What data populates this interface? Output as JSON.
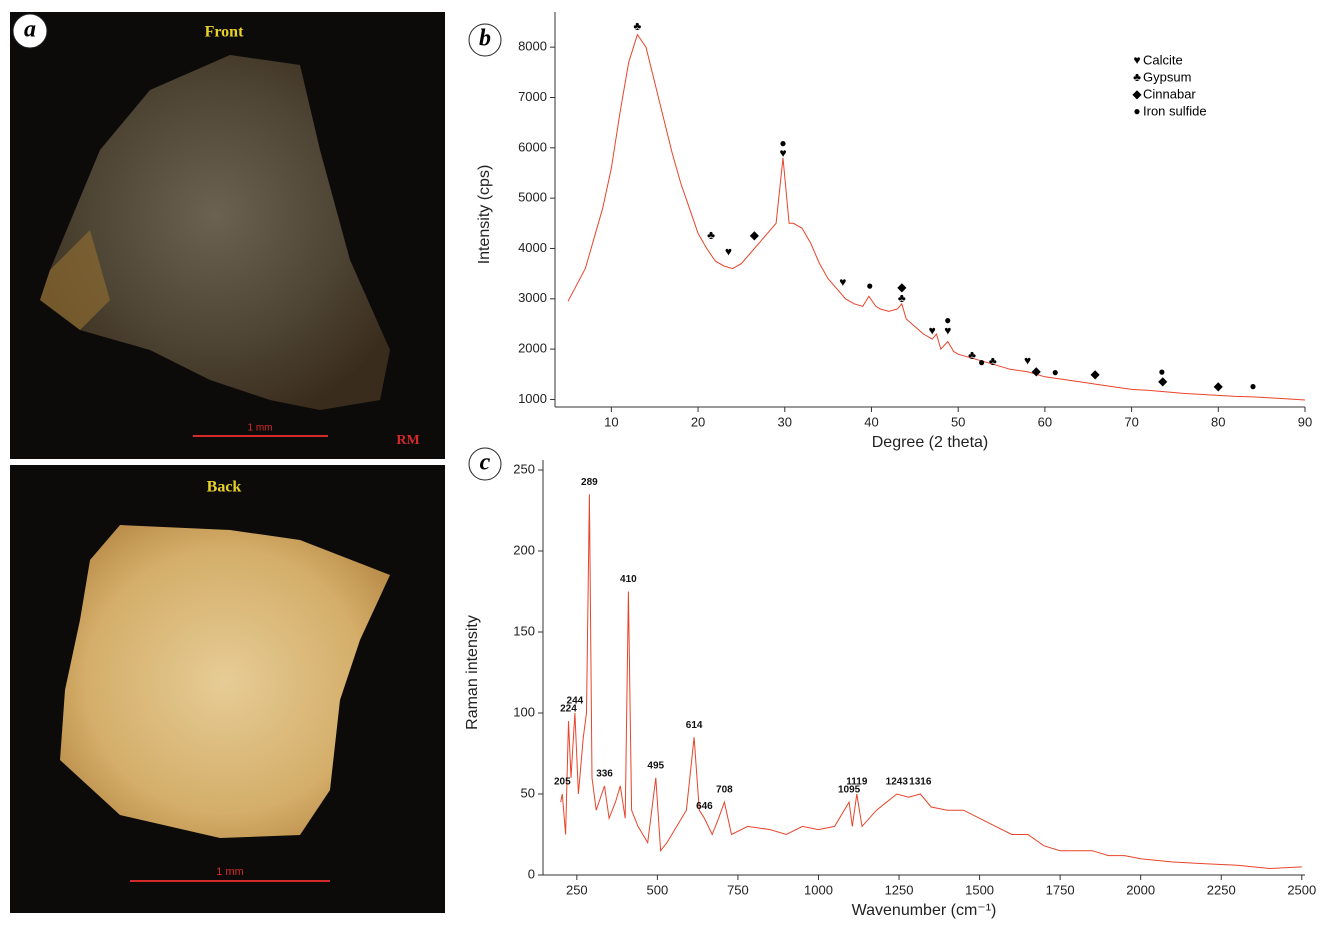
{
  "photos": [
    {
      "label": "a",
      "caption": "Front",
      "scale": "1 mm",
      "tag": "RM"
    },
    {
      "caption": "Back",
      "scale": "1 mm"
    }
  ],
  "chart_data": [
    {
      "type": "line",
      "panel": "b",
      "x_label": "Degree (2 theta)",
      "y_label": "Intensity (cps)",
      "color": "#e8442a",
      "x": [
        5,
        7,
        9,
        10,
        11,
        12,
        13,
        14,
        15,
        16,
        17,
        18,
        19,
        20,
        21,
        22,
        23,
        24,
        25,
        26,
        27,
        28,
        29,
        29.8,
        30.5,
        31,
        32,
        33,
        34,
        35,
        36,
        37,
        38,
        39,
        39.7,
        40.5,
        41,
        42,
        43,
        43.5,
        44,
        45,
        46,
        47,
        47.5,
        48,
        48.8,
        49.5,
        50,
        52,
        54,
        56,
        58,
        60,
        62,
        64,
        66,
        68,
        70,
        72,
        74,
        76,
        78,
        80,
        82,
        84,
        86,
        88,
        90
      ],
      "values": [
        2950,
        3600,
        4800,
        5600,
        6700,
        7700,
        8250,
        8000,
        7300,
        6600,
        5900,
        5300,
        4800,
        4300,
        4000,
        3750,
        3650,
        3600,
        3700,
        3900,
        4100,
        4300,
        4500,
        5800,
        4500,
        4500,
        4400,
        4100,
        3700,
        3400,
        3200,
        3000,
        2900,
        2850,
        3050,
        2850,
        2800,
        2750,
        2800,
        2900,
        2600,
        2450,
        2300,
        2200,
        2300,
        2000,
        2150,
        1950,
        1900,
        1800,
        1700,
        1600,
        1550,
        1450,
        1400,
        1350,
        1300,
        1250,
        1200,
        1180,
        1150,
        1120,
        1100,
        1080,
        1060,
        1050,
        1030,
        1010,
        990
      ],
      "xlim": [
        3.5,
        90
      ],
      "ylim": [
        850,
        8500
      ],
      "xticks": [
        10,
        20,
        30,
        40,
        50,
        60,
        70,
        80,
        90
      ],
      "yticks": [
        1000,
        2000,
        3000,
        4000,
        5000,
        6000,
        7000,
        8000
      ],
      "legend": [
        {
          "symbol": "♥",
          "name": "Calcite"
        },
        {
          "symbol": "♣",
          "name": "Gypsum"
        },
        {
          "symbol": "◆",
          "name": " Cinnabar"
        },
        {
          "symbol": "●",
          "name": " Iron sulfide"
        }
      ],
      "markers": [
        {
          "x": 13,
          "y": 8400,
          "symbol": "♣"
        },
        {
          "x": 29.8,
          "y": 6080,
          "symbol": "●"
        },
        {
          "x": 29.8,
          "y": 5880,
          "symbol": "♥"
        },
        {
          "x": 21.5,
          "y": 4250,
          "symbol": "♣"
        },
        {
          "x": 23.5,
          "y": 3920,
          "symbol": "♥"
        },
        {
          "x": 26.5,
          "y": 4250,
          "symbol": "◆"
        },
        {
          "x": 36.7,
          "y": 3320,
          "symbol": "♥"
        },
        {
          "x": 39.8,
          "y": 3250,
          "symbol": "●"
        },
        {
          "x": 43.5,
          "y": 3220,
          "symbol": "◆"
        },
        {
          "x": 43.5,
          "y": 3000,
          "symbol": "♣"
        },
        {
          "x": 47,
          "y": 2350,
          "symbol": "♥"
        },
        {
          "x": 48.8,
          "y": 2560,
          "symbol": "●"
        },
        {
          "x": 48.8,
          "y": 2350,
          "symbol": "♥"
        },
        {
          "x": 51.6,
          "y": 1870,
          "symbol": "♣"
        },
        {
          "x": 52.7,
          "y": 1730,
          "symbol": "●"
        },
        {
          "x": 54,
          "y": 1750,
          "symbol": "♣"
        },
        {
          "x": 58,
          "y": 1760,
          "symbol": "♥"
        },
        {
          "x": 59,
          "y": 1550,
          "symbol": "◆"
        },
        {
          "x": 61.2,
          "y": 1530,
          "symbol": "●"
        },
        {
          "x": 65.8,
          "y": 1490,
          "symbol": "◆"
        },
        {
          "x": 73.5,
          "y": 1540,
          "symbol": "●"
        },
        {
          "x": 73.6,
          "y": 1350,
          "symbol": "◆"
        },
        {
          "x": 80,
          "y": 1250,
          "symbol": "◆"
        },
        {
          "x": 84,
          "y": 1250,
          "symbol": "●"
        }
      ]
    },
    {
      "type": "line",
      "panel": "c",
      "x_label": "Wavenumber (cm⁻¹)",
      "y_label": "Raman intensity",
      "color": "#e8442a",
      "x": [
        200,
        205,
        215,
        224,
        232,
        244,
        255,
        270,
        280,
        289,
        297,
        310,
        336,
        350,
        370,
        385,
        400,
        410,
        420,
        440,
        470,
        495,
        510,
        530,
        560,
        590,
        614,
        630,
        646,
        670,
        690,
        708,
        730,
        780,
        850,
        900,
        950,
        1000,
        1050,
        1095,
        1105,
        1119,
        1135,
        1180,
        1243,
        1280,
        1316,
        1350,
        1400,
        1450,
        1500,
        1550,
        1600,
        1650,
        1700,
        1750,
        1800,
        1850,
        1900,
        1950,
        2000,
        2100,
        2200,
        2300,
        2400,
        2500
      ],
      "values": [
        45,
        50,
        25,
        95,
        60,
        100,
        50,
        85,
        100,
        235,
        60,
        40,
        55,
        35,
        45,
        55,
        35,
        175,
        40,
        30,
        20,
        60,
        15,
        20,
        30,
        40,
        85,
        40,
        35,
        25,
        35,
        45,
        25,
        30,
        28,
        25,
        30,
        28,
        30,
        45,
        30,
        50,
        30,
        40,
        50,
        48,
        50,
        42,
        40,
        40,
        35,
        30,
        25,
        25,
        18,
        15,
        15,
        15,
        12,
        12,
        10,
        8,
        7,
        6,
        4,
        5
      ],
      "xlim": [
        145,
        2510
      ],
      "ylim": [
        0,
        250
      ],
      "xticks": [
        250,
        500,
        750,
        1000,
        1250,
        1500,
        1750,
        2000,
        2250,
        2500
      ],
      "yticks": [
        0,
        50,
        100,
        150,
        200,
        250
      ],
      "peaks": [
        {
          "x": 205,
          "y": 50
        },
        {
          "x": 224,
          "y": 95
        },
        {
          "x": 244,
          "y": 100
        },
        {
          "x": 289,
          "y": 235
        },
        {
          "x": 336,
          "y": 55
        },
        {
          "x": 410,
          "y": 175
        },
        {
          "x": 495,
          "y": 60
        },
        {
          "x": 614,
          "y": 85
        },
        {
          "x": 646,
          "y": 35
        },
        {
          "x": 708,
          "y": 45
        },
        {
          "x": 1095,
          "y": 45
        },
        {
          "x": 1119,
          "y": 50
        },
        {
          "x": 1243,
          "y": 50
        },
        {
          "x": 1316,
          "y": 50
        }
      ]
    }
  ]
}
